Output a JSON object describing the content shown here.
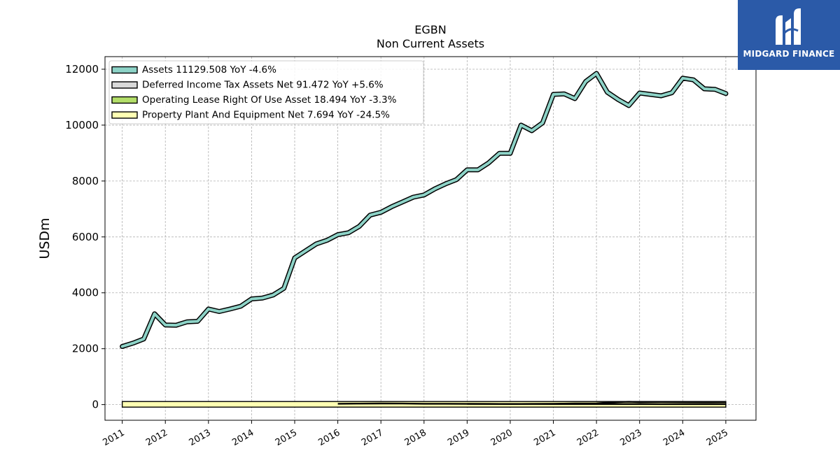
{
  "chart_data": {
    "type": "line",
    "title": "EGBN",
    "subtitle": "Non Current  Assets",
    "xlabel": "",
    "ylabel": "USDm",
    "x_ticks": [
      "2011",
      "2012",
      "2013",
      "2014",
      "2015",
      "2016",
      "2017",
      "2018",
      "2019",
      "2020",
      "2021",
      "2022",
      "2023",
      "2024",
      "2025"
    ],
    "xlim": [
      2010.6,
      2025.7
    ],
    "ylim": [
      -560,
      12450
    ],
    "y_ticks": [
      0,
      2000,
      4000,
      6000,
      8000,
      10000,
      12000
    ],
    "grid": true,
    "legend_position": "top-left",
    "series": [
      {
        "name": "Assets",
        "legend": "Assets  11129.508 YoY -4.6%",
        "color": "#8dd3c7",
        "x": [
          2011.0,
          2011.25,
          2011.5,
          2011.75,
          2012.0,
          2012.25,
          2012.5,
          2012.75,
          2013.0,
          2013.25,
          2013.5,
          2013.75,
          2014.0,
          2014.25,
          2014.5,
          2014.75,
          2015.0,
          2015.25,
          2015.5,
          2015.75,
          2016.0,
          2016.25,
          2016.5,
          2016.75,
          2017.0,
          2017.25,
          2017.5,
          2017.75,
          2018.0,
          2018.25,
          2018.5,
          2018.75,
          2019.0,
          2019.25,
          2019.5,
          2019.75,
          2020.0,
          2020.25,
          2020.5,
          2020.75,
          2021.0,
          2021.25,
          2021.5,
          2021.75,
          2022.0,
          2022.25,
          2022.5,
          2022.75,
          2023.0,
          2023.25,
          2023.5,
          2023.75,
          2024.0,
          2024.25,
          2024.5,
          2024.75,
          2025.0
        ],
        "values": [
          2080,
          2200,
          2350,
          3250,
          2850,
          2840,
          2960,
          2980,
          3420,
          3330,
          3420,
          3520,
          3780,
          3810,
          3920,
          4160,
          5250,
          5500,
          5750,
          5880,
          6080,
          6150,
          6380,
          6780,
          6880,
          7080,
          7250,
          7420,
          7500,
          7720,
          7900,
          8050,
          8400,
          8400,
          8650,
          8990,
          8990,
          10000,
          9800,
          10080,
          11100,
          11120,
          10950,
          11560,
          11850,
          11180,
          10920,
          10700,
          11150,
          11100,
          11050,
          11160,
          11680,
          11620,
          11300,
          11280,
          11129.508
        ]
      },
      {
        "name": "Deferred Income Tax Assets Net",
        "legend": "Deferred Income Tax Assets Net  91.472 YoY +5.6%",
        "color": "#d9d9d9",
        "x": [
          2016.0,
          2016.5,
          2017.0,
          2017.5,
          2018.0,
          2018.5,
          2019.0,
          2019.5,
          2020.0,
          2020.5,
          2021.0,
          2021.5,
          2022.0,
          2022.25,
          2022.5,
          2022.75,
          2023.0,
          2023.5,
          2024.0,
          2024.5,
          2025.0
        ],
        "values": [
          30,
          35,
          40,
          38,
          30,
          30,
          25,
          25,
          20,
          25,
          30,
          40,
          45,
          70,
          90,
          100,
          90,
          95,
          90,
          85,
          91.472
        ]
      },
      {
        "name": "Operating Lease Right Of Use Asset",
        "legend": "Operating Lease Right Of Use Asset  18.494 YoY -3.3%",
        "color": "#b3de69",
        "x": [
          2019.0,
          2019.5,
          2020.0,
          2020.5,
          2021.0,
          2021.5,
          2022.0,
          2022.5,
          2023.0,
          2023.5,
          2024.0,
          2024.5,
          2025.0
        ],
        "values": [
          25,
          24,
          23,
          22,
          21,
          21,
          20,
          20,
          20,
          19,
          19,
          19,
          18.494
        ]
      },
      {
        "name": "Property Plant And Equipment Net",
        "legend": "Property Plant And Equipment Net  7.694 YoY -24.5%",
        "color": "#ffffb3",
        "x": [
          2011.0,
          2012.0,
          2013.0,
          2014.0,
          2015.0,
          2016.0,
          2017.0,
          2018.0,
          2019.0,
          2020.0,
          2021.0,
          2022.0,
          2023.0,
          2024.0,
          2025.0
        ],
        "values": [
          10,
          11,
          12,
          12,
          13,
          13,
          14,
          13,
          12,
          12,
          11,
          11,
          10,
          10,
          7.694
        ]
      }
    ]
  },
  "logo": {
    "text": "MIDGARD FINANCE"
  }
}
